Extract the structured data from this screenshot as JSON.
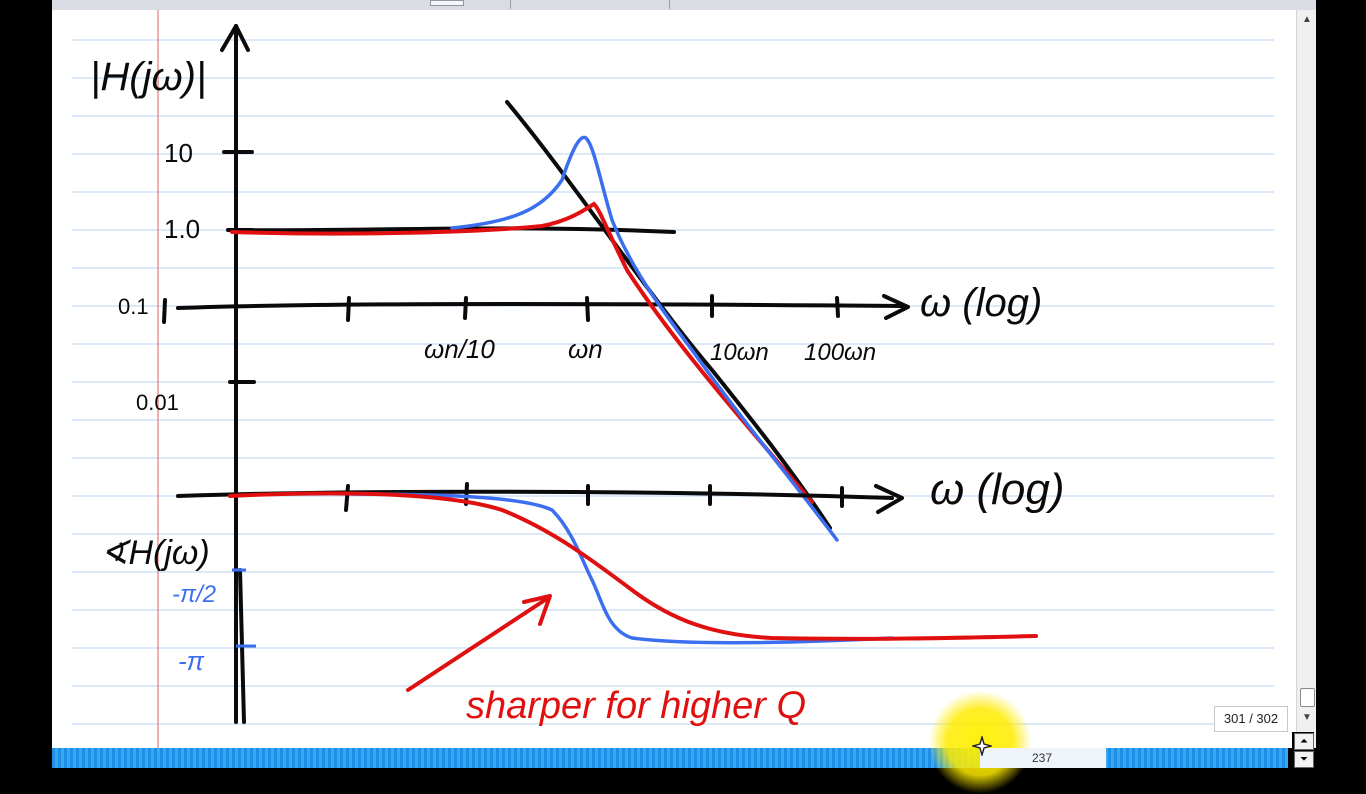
{
  "notes": {
    "magnitude_axis_label": "|H(jω)|",
    "magnitude_tick_10": "10",
    "magnitude_tick_1": "1.0",
    "magnitude_tick_01": "0.1",
    "magnitude_tick_001": "0.01",
    "freq_axis_label_top": "ω (log)",
    "freq_axis_label_bottom": "ω (log)",
    "freq_tick_wn10": "ωn/10",
    "freq_tick_wn": "ωn",
    "freq_tick_10wn": "10ωn",
    "freq_tick_100wn": "100ωn",
    "phase_axis_label": "∢H(jω)",
    "phase_tick_half_pi": "-π/2",
    "phase_tick_pi": "-π",
    "annotation": "sharper for higher Q"
  },
  "colors": {
    "ink_black": "#0a0a0a",
    "ink_red": "#e01010",
    "ink_blue": "#3b6ff0",
    "rule_line": "#b9d3f2",
    "margin_line": "#e57a7a"
  },
  "viewer": {
    "page_counter": "301 / 302",
    "timeline_readout": "237",
    "timeline_progress": 0.71
  }
}
